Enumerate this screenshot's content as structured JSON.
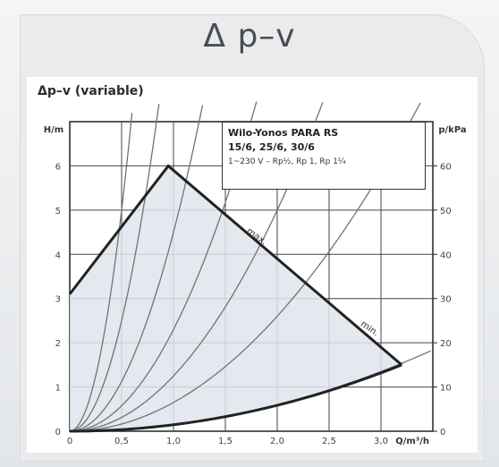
{
  "page": {
    "title": "Δ p–v"
  },
  "chart_data": {
    "type": "line",
    "title": "Δp–v (variable)",
    "xlabel": "Q/m³/h",
    "ylabel_left": "H/m",
    "ylabel_right": "p/kPa",
    "xlim": [
      0,
      3.5
    ],
    "ylim": [
      0,
      7
    ],
    "ylim_right": [
      0,
      70
    ],
    "x_ticks": [
      "0",
      "0,5",
      "1,0",
      "1,5",
      "2,0",
      "2,5",
      "3,0"
    ],
    "y_ticks": [
      "0",
      "1",
      "2",
      "3",
      "4",
      "5",
      "6"
    ],
    "y_right_ticks": [
      "0",
      "10",
      "20",
      "30",
      "40",
      "50",
      "60"
    ],
    "grid": true,
    "operating_envelope": {
      "points": [
        [
          0,
          3.1
        ],
        [
          0.95,
          6
        ],
        [
          3.2,
          1.5
        ],
        [
          0,
          0
        ]
      ]
    },
    "annotations": [
      {
        "text": "max.",
        "x": 1.7,
        "y": 4.5
      },
      {
        "text": "min.",
        "x": 2.8,
        "y": 2.4
      }
    ],
    "system_curves": [
      {
        "k": 20
      },
      {
        "k": 10
      },
      {
        "k": 4.5
      },
      {
        "k": 2.3
      },
      {
        "k": 1.25
      },
      {
        "k": 0.65
      },
      {
        "k": 0.15
      }
    ],
    "legend": {
      "line1": "Wilo-Yonos PARA RS",
      "line2": "15/6, 25/6, 30/6",
      "line3": "1~230 V – Rp½, Rp 1, Rp 1¼"
    }
  }
}
